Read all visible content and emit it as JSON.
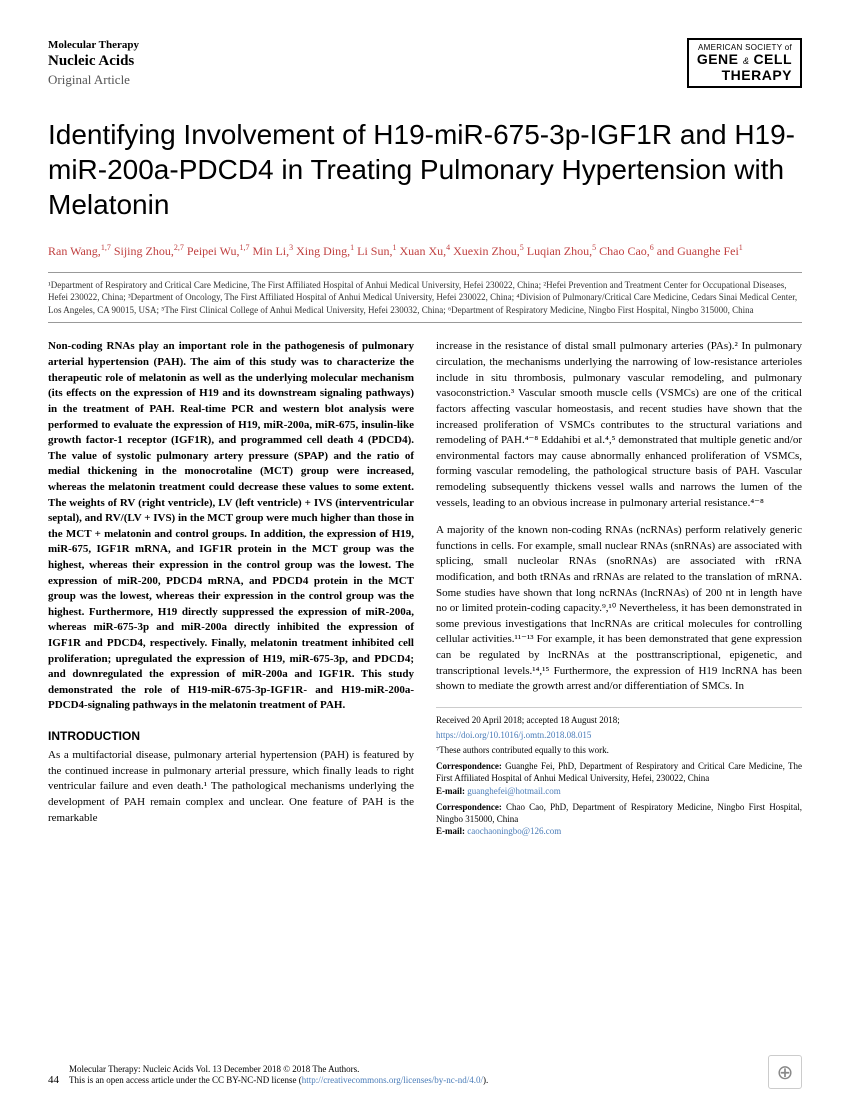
{
  "header": {
    "journal_top": "Molecular Therapy",
    "journal_main": "Nucleic Acids",
    "article_type": "Original Article",
    "society_top": "AMERICAN SOCIETY of",
    "society_gene": "GENE",
    "society_amp": "&",
    "society_cell": "CELL",
    "society_therapy": "THERAPY"
  },
  "title": "Identifying Involvement of H19-miR-675-3p-IGF1R and H19-miR-200a-PDCD4 in Treating Pulmonary Hypertension with Melatonin",
  "authors_html": "Ran Wang,<sup>1,7</sup> Sijing Zhou,<sup>2,7</sup> Peipei Wu,<sup>1,7</sup> Min Li,<sup>3</sup> Xing Ding,<sup>1</sup> Li Sun,<sup>1</sup> Xuan Xu,<sup>4</sup> Xuexin Zhou,<sup>5</sup> Luqian Zhou,<sup>5</sup> Chao Cao,<sup>6</sup> and Guanghe Fei<sup>1</sup>",
  "affiliations": "¹Department of Respiratory and Critical Care Medicine, The First Affiliated Hospital of Anhui Medical University, Hefei 230022, China; ²Hefei Prevention and Treatment Center for Occupational Diseases, Hefei 230022, China; ³Department of Oncology, The First Affiliated Hospital of Anhui Medical University, Hefei 230022, China; ⁴Division of Pulmonary/Critical Care Medicine, Cedars Sinai Medical Center, Los Angeles, CA 90015, USA; ⁵The First Clinical College of Anhui Medical University, Hefei 230032, China; ⁶Department of Respiratory Medicine, Ningbo First Hospital, Ningbo 315000, China",
  "abstract": "Non-coding RNAs play an important role in the pathogenesis of pulmonary arterial hypertension (PAH). The aim of this study was to characterize the therapeutic role of melatonin as well as the underlying molecular mechanism (its effects on the expression of H19 and its downstream signaling pathways) in the treatment of PAH. Real-time PCR and western blot analysis were performed to evaluate the expression of H19, miR-200a, miR-675, insulin-like growth factor-1 receptor (IGF1R), and programmed cell death 4 (PDCD4). The value of systolic pulmonary artery pressure (SPAP) and the ratio of medial thickening in the monocrotaline (MCT) group were increased, whereas the melatonin treatment could decrease these values to some extent. The weights of RV (right ventricle), LV (left ventricle) + IVS (interventricular septal), and RV/(LV + IVS) in the MCT group were much higher than those in the MCT + melatonin and control groups. In addition, the expression of H19, miR-675, IGF1R mRNA, and IGF1R protein in the MCT group was the highest, whereas their expression in the control group was the lowest. The expression of miR-200, PDCD4 mRNA, and PDCD4 protein in the MCT group was the lowest, whereas their expression in the control group was the highest. Furthermore, H19 directly suppressed the expression of miR-200a, whereas miR-675-3p and miR-200a directly inhibited the expression of IGF1R and PDCD4, respectively. Finally, melatonin treatment inhibited cell proliferation; upregulated the expression of H19, miR-675-3p, and PDCD4; and downregulated the expression of miR-200a and IGF1R. This study demonstrated the role of H19-miR-675-3p-IGF1R- and H19-miR-200a-PDCD4-signaling pathways in the melatonin treatment of PAH.",
  "intro_heading": "INTRODUCTION",
  "intro_p1": "As a multifactorial disease, pulmonary arterial hypertension (PAH) is featured by the continued increase in pulmonary arterial pressure, which finally leads to right ventricular failure and even death.¹ The pathological mechanisms underlying the development of PAH remain complex and unclear. One feature of PAH is the remarkable",
  "col2_p1": "increase in the resistance of distal small pulmonary arteries (PAs).² In pulmonary circulation, the mechanisms underlying the narrowing of low-resistance arterioles include in situ thrombosis, pulmonary vascular remodeling, and pulmonary vasoconstriction.³ Vascular smooth muscle cells (VSMCs) are one of the critical factors affecting vascular homeostasis, and recent studies have shown that the increased proliferation of VSMCs contributes to the structural variations and remodeling of PAH.⁴⁻⁸ Eddahibi et al.⁴,⁵ demonstrated that multiple genetic and/or environmental factors may cause abnormally enhanced proliferation of VSMCs, forming vascular remodeling, the pathological structure basis of PAH. Vascular remodeling subsequently thickens vessel walls and narrows the lumen of the vessels, leading to an obvious increase in pulmonary arterial resistance.⁴⁻⁸",
  "col2_p2": "A majority of the known non-coding RNAs (ncRNAs) perform relatively generic functions in cells. For example, small nuclear RNAs (snRNAs) are associated with splicing, small nucleolar RNAs (snoRNAs) are associated with rRNA modification, and both tRNAs and rRNAs are related to the translation of mRNA. Some studies have shown that long ncRNAs (lncRNAs) of 200 nt in length have no or limited protein-coding capacity.⁹,¹⁰ Nevertheless, it has been demonstrated in some previous investigations that lncRNAs are critical molecules for controlling cellular activities.¹¹⁻¹³ For example, it has been demonstrated that gene expression can be regulated by lncRNAs at the posttranscriptional, epigenetic, and transcriptional levels.¹⁴,¹⁵ Furthermore, the expression of H19 lncRNA has been shown to mediate the growth arrest and/or differentiation of SMCs. In",
  "correspondence": {
    "received": "Received 20 April 2018; accepted 18 August 2018;",
    "doi": "https://doi.org/10.1016/j.omtn.2018.08.015",
    "equal": "⁷These authors contributed equally to this work.",
    "corr1_label": "Correspondence:",
    "corr1_text": " Guanghe Fei, PhD, Department of Respiratory and Critical Care Medicine, The First Affiliated Hospital of Anhui Medical University, Hefei, 230022, China",
    "corr1_email_label": "E-mail:",
    "corr1_email": " guanghefei@hotmail.com",
    "corr2_label": "Correspondence:",
    "corr2_text": " Chao Cao, PhD, Department of Respiratory Medicine, Ningbo First Hospital, Ningbo 315000, China",
    "corr2_email_label": "E-mail:",
    "corr2_email": " caochaoningbo@126.com"
  },
  "footer": {
    "page": "44",
    "line1": "Molecular Therapy: Nucleic Acids Vol. 13 December 2018 © 2018 The Authors.",
    "line2a": "This is an open access article under the CC BY-NC-ND license (",
    "line2b": "http://creativecommons.org/licenses/by-nc-nd/4.0/",
    "line2c": ")."
  }
}
